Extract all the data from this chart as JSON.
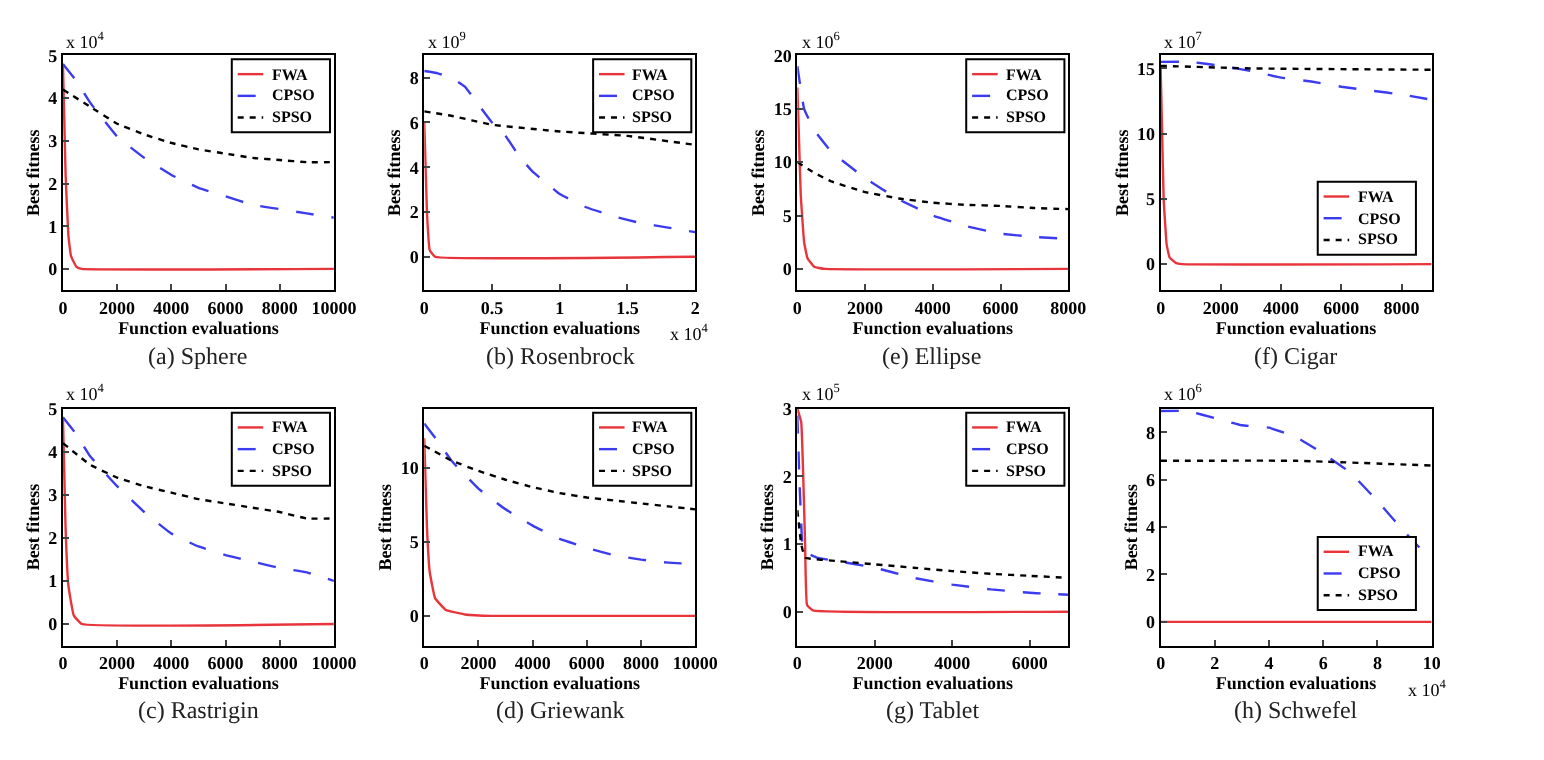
{
  "chart_data": [
    {
      "type": "line",
      "title": "(a) Sphere",
      "xlabel": "Function evaluations",
      "ylabel": "Best fitness",
      "annotations": [
        "x 10$^{4}$"
      ],
      "xlim": [
        0,
        10000
      ],
      "xticks": [
        0,
        2000,
        4000,
        6000,
        8000,
        10000
      ],
      "ylim": [
        -0.5,
        5
      ],
      "yticks": [
        0,
        1,
        2,
        3,
        4,
        5
      ],
      "grid": false,
      "legend": "top right",
      "marker": "none",
      "series": [
        {
          "name": "FWA",
          "color": "#e8353b",
          "line_style": "solid",
          "x": [
            0,
            50,
            100,
            200,
            300,
            500,
            700,
            10000
          ],
          "values": [
            4.8,
            3.5,
            2.2,
            0.8,
            0.3,
            0.05,
            0,
            0
          ]
        },
        {
          "name": "CPSO",
          "color": "#3b3bf0",
          "line_style": "dashed",
          "x": [
            0,
            500,
            1000,
            2000,
            3000,
            4000,
            5000,
            6000,
            7000,
            8000,
            9000,
            10000
          ],
          "values": [
            4.8,
            4.4,
            3.9,
            3.1,
            2.6,
            2.2,
            1.9,
            1.7,
            1.5,
            1.4,
            1.3,
            1.2
          ]
        },
        {
          "name": "SPSO",
          "color": "#000000",
          "line_style": "dotted",
          "x": [
            0,
            1000,
            2000,
            3000,
            4000,
            5000,
            6000,
            7000,
            8000,
            9000,
            10000
          ],
          "values": [
            4.2,
            3.8,
            3.4,
            3.15,
            2.95,
            2.8,
            2.7,
            2.6,
            2.55,
            2.5,
            2.5
          ]
        }
      ]
    },
    {
      "type": "line",
      "title": "(b) Rosenbrock",
      "xlabel": "Function evaluations",
      "ylabel": "Best fitness",
      "annotations": [
        "x 10$^{9}$",
        "x 10$^{4}$"
      ],
      "xlim": [
        0,
        2
      ],
      "xticks": [
        0,
        0.5,
        1,
        1.5,
        2
      ],
      "ylim": [
        -1.5,
        9
      ],
      "yticks": [
        0,
        2,
        4,
        6,
        8
      ],
      "grid": false,
      "legend": "top right",
      "marker": "none",
      "series": [
        {
          "name": "FWA",
          "color": "#e8353b",
          "line_style": "solid",
          "x": [
            0,
            0.02,
            0.04,
            0.08,
            2
          ],
          "values": [
            6,
            2,
            0.3,
            0,
            0
          ]
        },
        {
          "name": "CPSO",
          "color": "#3b3bf0",
          "line_style": "dashed",
          "x": [
            0,
            0.1,
            0.2,
            0.3,
            0.4,
            0.5,
            0.6,
            0.7,
            0.8,
            0.9,
            1.0,
            1.2,
            1.4,
            1.6,
            1.8,
            2
          ],
          "values": [
            8.3,
            8.2,
            8,
            7.6,
            6.8,
            6,
            5.4,
            4.5,
            3.8,
            3.3,
            2.8,
            2.2,
            1.8,
            1.5,
            1.3,
            1.1
          ]
        },
        {
          "name": "SPSO",
          "color": "#000000",
          "line_style": "dotted",
          "x": [
            0,
            0.2,
            0.5,
            1,
            1.5,
            2
          ],
          "values": [
            6.5,
            6.3,
            5.9,
            5.6,
            5.4,
            5.0
          ]
        }
      ]
    },
    {
      "type": "line",
      "title": "(e) Ellipse",
      "xlabel": "Function evaluations",
      "ylabel": "Best fitness",
      "annotations": [
        "x 10$^{6}$"
      ],
      "xlim": [
        0,
        8000
      ],
      "xticks": [
        0,
        2000,
        4000,
        6000,
        8000
      ],
      "ylim": [
        -2,
        20
      ],
      "yticks": [
        0,
        5,
        10,
        15,
        20
      ],
      "grid": false,
      "legend": "top right",
      "marker": "none",
      "series": [
        {
          "name": "FWA",
          "color": "#e8353b",
          "line_style": "solid",
          "x": [
            0,
            50,
            100,
            200,
            300,
            500,
            800,
            8000
          ],
          "values": [
            17,
            12,
            7,
            2.5,
            1,
            0.2,
            0,
            0
          ]
        },
        {
          "name": "CPSO",
          "color": "#3b3bf0",
          "line_style": "dashed",
          "x": [
            0,
            200,
            500,
            1000,
            2000,
            3000,
            4000,
            5000,
            6000,
            7000,
            8000
          ],
          "values": [
            19,
            15,
            13,
            11,
            8.5,
            6.5,
            5,
            4,
            3.3,
            3,
            2.8
          ]
        },
        {
          "name": "SPSO",
          "color": "#000000",
          "line_style": "dotted",
          "x": [
            0,
            500,
            1000,
            2000,
            3000,
            4000,
            5000,
            6000,
            7000,
            8000
          ],
          "values": [
            10,
            9,
            8.2,
            7.2,
            6.6,
            6.2,
            6,
            5.9,
            5.7,
            5.6
          ]
        }
      ]
    },
    {
      "type": "line",
      "title": "(f) Cigar",
      "xlabel": "Function evaluations",
      "ylabel": "Best fitness",
      "annotations": [
        "x 10$^{7}$"
      ],
      "xlim": [
        0,
        9000
      ],
      "xticks": [
        0,
        2000,
        4000,
        6000,
        8000
      ],
      "ylim": [
        -2,
        16
      ],
      "yticks": [
        0,
        5,
        10,
        15
      ],
      "grid": false,
      "legend": "bottom right",
      "marker": "none",
      "series": [
        {
          "name": "FWA",
          "color": "#e8353b",
          "line_style": "solid",
          "x": [
            0,
            50,
            100,
            200,
            300,
            500,
            700,
            9000
          ],
          "values": [
            15,
            10,
            5,
            1.5,
            0.5,
            0.1,
            0,
            0
          ]
        },
        {
          "name": "CPSO",
          "color": "#3b3bf0",
          "line_style": "dashed",
          "x": [
            0,
            1000,
            2000,
            3000,
            4000,
            5000,
            6000,
            7000,
            8000,
            9000
          ],
          "values": [
            15.5,
            15.5,
            15.2,
            14.8,
            14.3,
            14,
            13.6,
            13.3,
            13,
            12.6
          ]
        },
        {
          "name": "SPSO",
          "color": "#000000",
          "line_style": "dotted",
          "x": [
            0,
            3000,
            9000
          ],
          "values": [
            15.2,
            15.0,
            14.9
          ]
        }
      ]
    },
    {
      "type": "line",
      "title": "(c) Rastrigin",
      "xlabel": "Function evaluations",
      "ylabel": "Best fitness",
      "annotations": [
        "x 10$^{4}$"
      ],
      "xlim": [
        0,
        10000
      ],
      "xticks": [
        0,
        2000,
        4000,
        6000,
        8000,
        10000
      ],
      "ylim": [
        -0.5,
        5
      ],
      "yticks": [
        0,
        1,
        2,
        3,
        4,
        5
      ],
      "grid": false,
      "legend": "top right",
      "marker": "none",
      "series": [
        {
          "name": "FWA",
          "color": "#e8353b",
          "line_style": "solid",
          "x": [
            0,
            50,
            100,
            200,
            400,
            700,
            10000
          ],
          "values": [
            4.8,
            3.5,
            2.2,
            0.9,
            0.2,
            0,
            0
          ]
        },
        {
          "name": "CPSO",
          "color": "#3b3bf0",
          "line_style": "dashed",
          "x": [
            0,
            500,
            1000,
            2000,
            3000,
            4000,
            5000,
            6000,
            7000,
            8000,
            9000,
            10000
          ],
          "values": [
            4.8,
            4.4,
            3.9,
            3.2,
            2.6,
            2.1,
            1.8,
            1.6,
            1.45,
            1.3,
            1.2,
            1.0
          ]
        },
        {
          "name": "SPSO",
          "color": "#000000",
          "line_style": "dotted",
          "x": [
            0,
            1000,
            2000,
            3000,
            4000,
            5000,
            6000,
            7000,
            8000,
            9000,
            10000
          ],
          "values": [
            4.2,
            3.7,
            3.4,
            3.2,
            3.05,
            2.9,
            2.8,
            2.7,
            2.6,
            2.45,
            2.45
          ]
        }
      ]
    },
    {
      "type": "line",
      "title": "(d) Griewank",
      "xlabel": "Function evaluations",
      "ylabel": "Best fitness",
      "xlim": [
        0,
        10000
      ],
      "xticks": [
        0,
        2000,
        4000,
        6000,
        8000,
        10000
      ],
      "ylim": [
        -2,
        14
      ],
      "yticks": [
        0,
        5,
        10
      ],
      "grid": false,
      "legend": "top right",
      "marker": "none",
      "series": [
        {
          "name": "FWA",
          "color": "#e8353b",
          "line_style": "solid",
          "x": [
            0,
            100,
            200,
            400,
            800,
            1500,
            2500,
            10000
          ],
          "values": [
            12,
            6,
            3,
            1.2,
            0.4,
            0.1,
            0,
            0
          ]
        },
        {
          "name": "CPSO",
          "color": "#3b3bf0",
          "line_style": "dashed",
          "x": [
            0,
            500,
            1000,
            2000,
            3000,
            4000,
            5000,
            6000,
            7000,
            8000,
            9000,
            10000
          ],
          "values": [
            13,
            11.8,
            10.5,
            8.6,
            7.2,
            6.1,
            5.2,
            4.6,
            4.1,
            3.8,
            3.6,
            3.5
          ]
        },
        {
          "name": "SPSO",
          "color": "#000000",
          "line_style": "dotted",
          "x": [
            0,
            1000,
            2000,
            3000,
            4000,
            5000,
            6000,
            7000,
            8000,
            9000,
            10000
          ],
          "values": [
            11.5,
            10.5,
            9.8,
            9.2,
            8.7,
            8.3,
            8,
            7.8,
            7.6,
            7.4,
            7.2
          ]
        }
      ]
    },
    {
      "type": "line",
      "title": "(g) Tablet",
      "xlabel": "Function evaluations",
      "ylabel": "Best fitness",
      "annotations": [
        "x 10$^{5}$"
      ],
      "xlim": [
        0,
        7000
      ],
      "xticks": [
        0,
        2000,
        4000,
        6000
      ],
      "ylim": [
        -0.5,
        3
      ],
      "yticks": [
        0,
        1,
        2,
        3
      ],
      "grid": false,
      "legend": "top right",
      "marker": "none",
      "series": [
        {
          "name": "FWA",
          "color": "#e8353b",
          "line_style": "solid",
          "x": [
            0,
            100,
            200,
            250,
            400,
            7000
          ],
          "values": [
            3,
            2.8,
            1,
            0.1,
            0.02,
            0
          ]
        },
        {
          "name": "CPSO",
          "color": "#3b3bf0",
          "line_style": "dashed",
          "x": [
            0,
            50,
            100,
            150,
            500,
            1000,
            2000,
            3000,
            4000,
            5000,
            6000,
            7000
          ],
          "values": [
            2.9,
            2,
            1.3,
            0.9,
            0.8,
            0.75,
            0.65,
            0.5,
            0.4,
            0.33,
            0.28,
            0.25
          ]
        },
        {
          "name": "SPSO",
          "color": "#000000",
          "line_style": "dotted",
          "x": [
            0,
            100,
            200,
            1000,
            2000,
            3000,
            4000,
            5000,
            6000,
            7000
          ],
          "values": [
            1.5,
            1,
            0.8,
            0.75,
            0.7,
            0.65,
            0.6,
            0.56,
            0.53,
            0.5
          ]
        }
      ]
    },
    {
      "type": "line",
      "title": "(h) Schwefel",
      "xlabel": "Function evaluations",
      "ylabel": "Best fitness",
      "annotations": [
        "x 10$^{6}$",
        "x 10$^{4}$"
      ],
      "xlim": [
        0,
        10
      ],
      "xticks": [
        0,
        2,
        4,
        6,
        8,
        10
      ],
      "ylim": [
        -1,
        9
      ],
      "yticks": [
        0,
        2,
        4,
        6,
        8
      ],
      "grid": false,
      "legend": "bottom right",
      "marker": "none",
      "series": [
        {
          "name": "FWA",
          "color": "#e8353b",
          "line_style": "solid",
          "x": [
            0,
            10
          ],
          "values": [
            0,
            0
          ]
        },
        {
          "name": "CPSO",
          "color": "#3b3bf0",
          "line_style": "dashed",
          "x": [
            0,
            1,
            2,
            3,
            4,
            5,
            6,
            7,
            8,
            9,
            10
          ],
          "values": [
            8.9,
            8.9,
            8.6,
            8.3,
            8.2,
            7.8,
            7.1,
            6.3,
            5.1,
            3.8,
            2.6
          ]
        },
        {
          "name": "SPSO",
          "color": "#000000",
          "line_style": "dotted",
          "x": [
            0,
            5,
            10
          ],
          "values": [
            6.8,
            6.8,
            6.6
          ]
        }
      ]
    }
  ]
}
